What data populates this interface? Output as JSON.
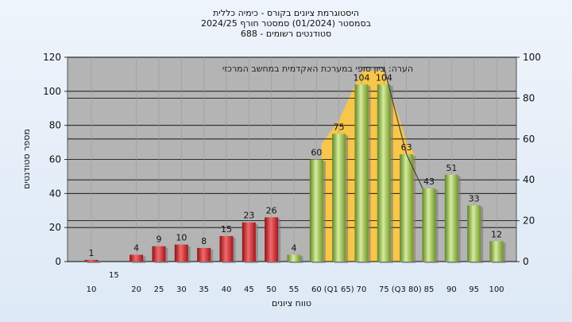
{
  "chart_data": {
    "type": "bar",
    "title_lines": [
      "היסטוגרמת ציונים בקורס - כימיה כללית",
      "בסמסטר  (01/2024)  סמסטר חורף 2024/25",
      "סטודנטים רשומים - 688"
    ],
    "annotation": "הערה: ציון סופי במערכת האקדמית במחשב המרכזי",
    "ylabel": "מספר סטודנטים",
    "xlabel": "טווח ציונים",
    "ylim": [
      0,
      120
    ],
    "yticks": [
      0,
      20,
      40,
      60,
      80,
      100,
      120
    ],
    "y2lim": [
      0,
      100
    ],
    "y2ticks": [
      0,
      20,
      40,
      60,
      80,
      100
    ],
    "x_tick_labels_lower": [
      "10",
      "20",
      "25",
      "30",
      "35",
      "40",
      "45",
      "50",
      "55",
      "60",
      "(Q1 65)",
      "70",
      "75",
      "(Q3 80)",
      "85",
      "90",
      "95",
      "100"
    ],
    "x_tick_labels_upper": [
      "15"
    ],
    "bars": [
      {
        "x": 10,
        "value": 1,
        "color": "red"
      },
      {
        "x": 20,
        "value": 4,
        "color": "red"
      },
      {
        "x": 25,
        "value": 9,
        "color": "red"
      },
      {
        "x": 30,
        "value": 10,
        "color": "red"
      },
      {
        "x": 35,
        "value": 8,
        "color": "red"
      },
      {
        "x": 40,
        "value": 15,
        "color": "red"
      },
      {
        "x": 45,
        "value": 23,
        "color": "red"
      },
      {
        "x": 50,
        "value": 26,
        "color": "red"
      },
      {
        "x": 55,
        "value": 4,
        "color": "green"
      },
      {
        "x": 60,
        "value": 60,
        "color": "green"
      },
      {
        "x": 65,
        "value": 75,
        "color": "green"
      },
      {
        "x": 70,
        "value": 104,
        "color": "green"
      },
      {
        "x": 75,
        "value": 104,
        "color": "green"
      },
      {
        "x": 80,
        "value": 63,
        "color": "green"
      },
      {
        "x": 85,
        "value": 43,
        "color": "green"
      },
      {
        "x": 90,
        "value": 51,
        "color": "green"
      },
      {
        "x": 95,
        "value": 33,
        "color": "green"
      },
      {
        "x": 100,
        "value": 12,
        "color": "green"
      }
    ],
    "quartile_band": {
      "from": 65,
      "to": 80,
      "color": "#f7c64a"
    },
    "colors": {
      "plot_bg": "#b4b4b4",
      "red_bar": "#d8262c",
      "green_bar": "#9cc24a"
    },
    "grid": true
  }
}
